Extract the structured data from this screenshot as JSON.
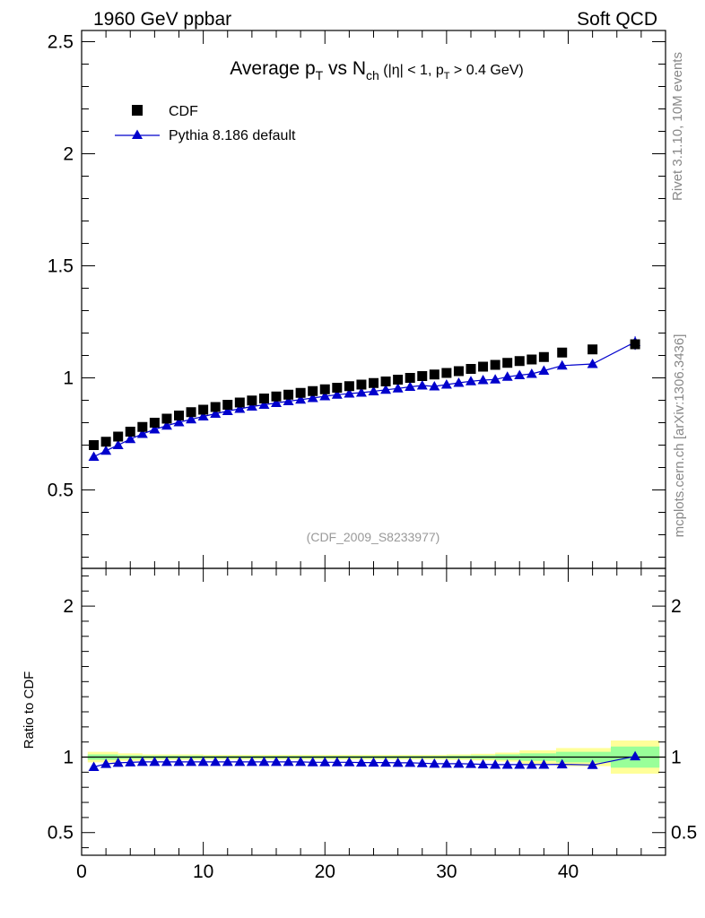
{
  "header": {
    "left": "1960 GeV ppbar",
    "right": "Soft QCD"
  },
  "side_labels": {
    "rivet": "Rivet 3.1.10,  10M events",
    "mcplots": "mcplots.cern.ch [arXiv:1306.3436]"
  },
  "title": {
    "main_a": "Average p",
    "main_a_sub": "T",
    "main_b": " vs N",
    "main_b_sub": "ch",
    "cut_a": " (|η| < 1, p",
    "cut_sub": "T",
    "cut_b": " > 0.4 GeV)"
  },
  "analysis_id": "(CDF_2009_S8233977)",
  "chart_data": {
    "type": "scatter",
    "title": "Average pT vs Nch (|η| < 1, pT > 0.4 GeV)",
    "xlim": [
      0,
      48
    ],
    "xticks": [
      0,
      10,
      20,
      30,
      40
    ],
    "xtick_labels": [
      "0",
      "10",
      "20",
      "30",
      "40"
    ],
    "main_panel": {
      "ylim": [
        0.15,
        2.55
      ],
      "yticks": [
        0.5,
        1,
        1.5,
        2,
        2.5
      ],
      "ytick_labels": [
        "0.5",
        "1",
        "1.5",
        "2",
        "2.5"
      ],
      "legend": [
        "CDF",
        "Pythia 8.186 default"
      ]
    },
    "ratio_panel": {
      "ylabel": "Ratio to CDF",
      "ylim": [
        0.35,
        2.25
      ],
      "yticks": [
        0.5,
        1,
        2
      ],
      "ytick_labels": [
        "0.5",
        "1",
        "2"
      ]
    },
    "series": [
      {
        "name": "CDF",
        "marker": "square",
        "color": "#000000",
        "x": [
          1,
          2,
          3,
          4,
          5,
          6,
          7,
          8,
          9,
          10,
          11,
          12,
          13,
          14,
          15,
          16,
          17,
          18,
          19,
          20,
          21,
          22,
          23,
          24,
          25,
          26,
          27,
          28,
          29,
          30,
          31,
          32,
          33,
          34,
          35,
          36,
          37,
          38,
          39.5,
          42,
          45.5
        ],
        "values": [
          0.7,
          0.715,
          0.738,
          0.76,
          0.781,
          0.8,
          0.818,
          0.832,
          0.847,
          0.858,
          0.87,
          0.88,
          0.89,
          0.899,
          0.908,
          0.917,
          0.925,
          0.933,
          0.941,
          0.949,
          0.956,
          0.963,
          0.97,
          0.977,
          0.984,
          0.992,
          1.0,
          1.008,
          1.015,
          1.022,
          1.03,
          1.04,
          1.05,
          1.058,
          1.067,
          1.075,
          1.082,
          1.093,
          1.113,
          1.127,
          1.15
        ]
      },
      {
        "name": "Pythia 8.186 default",
        "marker": "triangle",
        "color": "#0000cc",
        "x": [
          1,
          2,
          3,
          4,
          5,
          6,
          7,
          8,
          9,
          10,
          11,
          12,
          13,
          14,
          15,
          16,
          17,
          18,
          19,
          20,
          21,
          22,
          23,
          24,
          25,
          26,
          27,
          28,
          29,
          30,
          31,
          32,
          33,
          34,
          35,
          36,
          37,
          38,
          39.5,
          42,
          45.5
        ],
        "values": [
          0.648,
          0.675,
          0.7,
          0.727,
          0.75,
          0.77,
          0.787,
          0.802,
          0.815,
          0.828,
          0.84,
          0.852,
          0.862,
          0.872,
          0.88,
          0.888,
          0.896,
          0.903,
          0.91,
          0.918,
          0.925,
          0.93,
          0.934,
          0.94,
          0.947,
          0.953,
          0.96,
          0.966,
          0.962,
          0.97,
          0.978,
          0.985,
          0.99,
          0.993,
          1.005,
          1.012,
          1.018,
          1.032,
          1.055,
          1.062,
          1.16
        ]
      }
    ],
    "ratio": {
      "name": "Pythia 8.186 default / CDF",
      "x": [
        1,
        2,
        3,
        4,
        5,
        6,
        7,
        8,
        9,
        10,
        11,
        12,
        13,
        14,
        15,
        16,
        17,
        18,
        19,
        20,
        21,
        22,
        23,
        24,
        25,
        26,
        27,
        28,
        29,
        30,
        31,
        32,
        33,
        34,
        35,
        36,
        37,
        38,
        39.5,
        42,
        45.5
      ],
      "values": [
        0.935,
        0.955,
        0.962,
        0.965,
        0.968,
        0.968,
        0.968,
        0.968,
        0.968,
        0.968,
        0.968,
        0.968,
        0.968,
        0.968,
        0.968,
        0.968,
        0.968,
        0.968,
        0.966,
        0.966,
        0.966,
        0.966,
        0.964,
        0.964,
        0.964,
        0.962,
        0.962,
        0.96,
        0.956,
        0.956,
        0.956,
        0.955,
        0.952,
        0.95,
        0.95,
        0.95,
        0.95,
        0.95,
        0.952,
        0.948,
        1.005
      ]
    },
    "uncertainty_bands": {
      "x_edges": [
        0.5,
        3,
        5,
        10,
        20,
        30,
        32,
        34,
        36,
        39,
        43.5,
        47.5
      ],
      "yellow_half_width": [
        0.035,
        0.025,
        0.018,
        0.015,
        0.015,
        0.018,
        0.022,
        0.03,
        0.045,
        0.06,
        0.11
      ],
      "green_half_width": [
        0.018,
        0.012,
        0.01,
        0.008,
        0.008,
        0.01,
        0.012,
        0.018,
        0.025,
        0.035,
        0.07
      ]
    }
  }
}
